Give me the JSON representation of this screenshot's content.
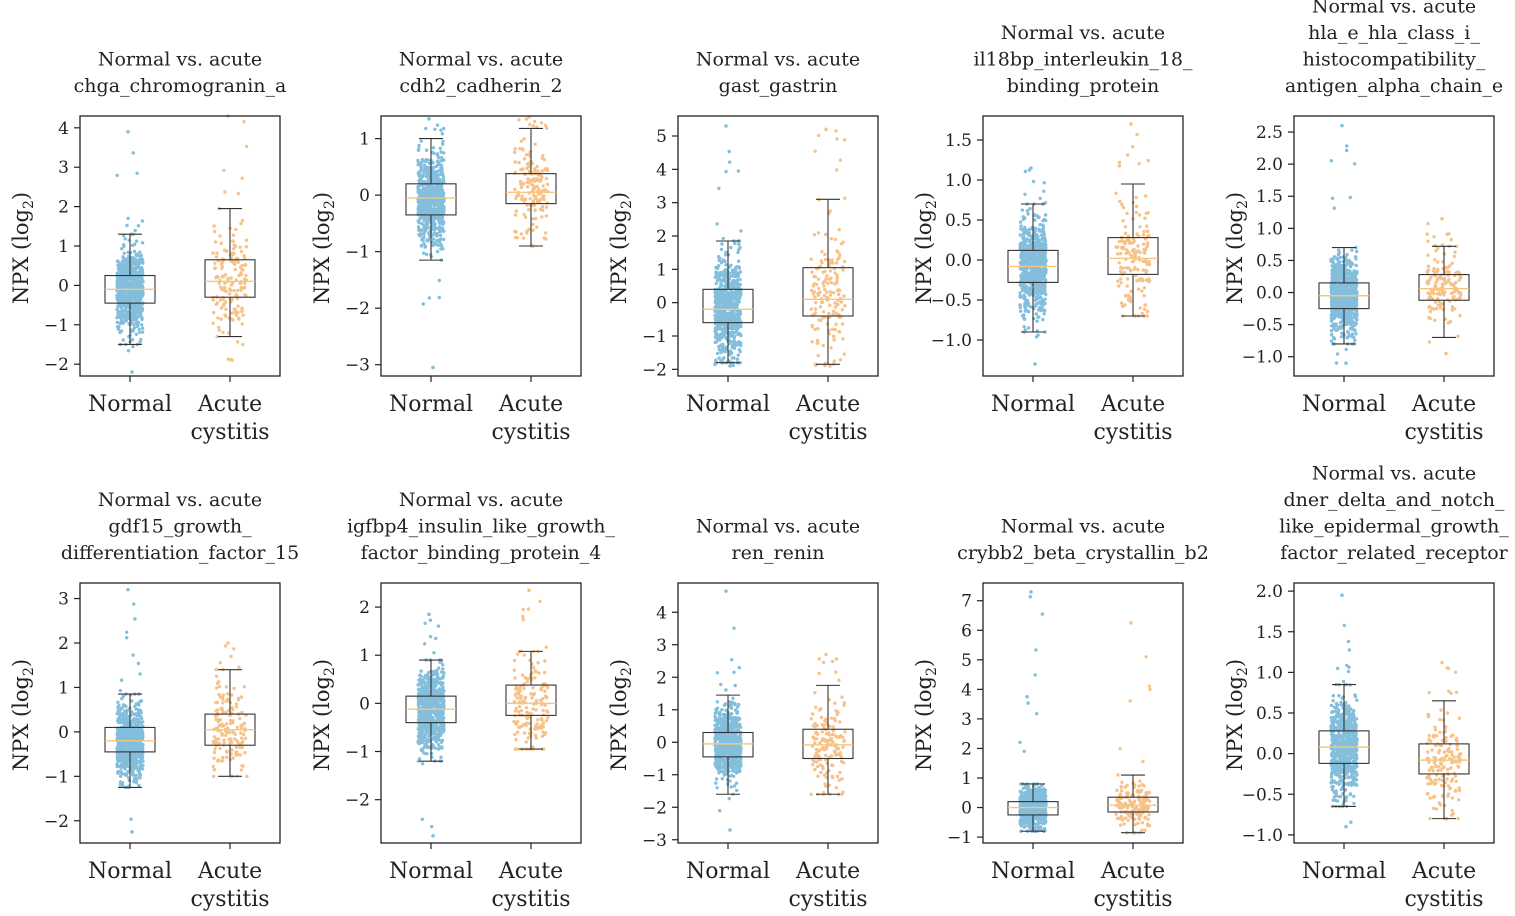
{
  "figure": {
    "description_panels": 10,
    "colors": {
      "normal": "#1f8ac0",
      "acute": "#f39a3c",
      "median": "#f5c77e",
      "box": "#333333"
    }
  },
  "chart_data": [
    {
      "type": "box",
      "title_lines": [
        "Normal vs. acute",
        "chga_chromogranin_a"
      ],
      "ylabel": "NPX (log",
      "ylabel_sub": "2",
      "ylabel_close": ")",
      "categories": [
        "Normal",
        "Acute cystitis"
      ],
      "category_lines": [
        [
          "Normal"
        ],
        [
          "Acute",
          "cystitis"
        ]
      ],
      "ylim": [
        -2.3,
        4.3
      ],
      "yticks": [
        -2,
        -1,
        0,
        1,
        2,
        3,
        4
      ],
      "ytick_labels": [
        "−2",
        "−1",
        "0",
        "1",
        "2",
        "3",
        "4"
      ],
      "series": [
        {
          "name": "Normal",
          "q1": -0.45,
          "median": -0.1,
          "q3": 0.25,
          "whisker_low": -1.5,
          "whisker_high": 1.3,
          "point_min": -2.2,
          "point_max": 3.9,
          "n": 700
        },
        {
          "name": "Acute cystitis",
          "q1": -0.3,
          "median": 0.1,
          "q3": 0.65,
          "whisker_low": -1.3,
          "whisker_high": 1.95,
          "point_min": -1.9,
          "point_max": 4.3,
          "n": 160
        }
      ]
    },
    {
      "type": "box",
      "title_lines": [
        "Normal vs. acute",
        "cdh2_cadherin_2"
      ],
      "ylabel": "NPX (log",
      "ylabel_sub": "2",
      "ylabel_close": ")",
      "categories": [
        "Normal",
        "Acute cystitis"
      ],
      "category_lines": [
        [
          "Normal"
        ],
        [
          "Acute",
          "cystitis"
        ]
      ],
      "ylim": [
        -3.2,
        1.4
      ],
      "yticks": [
        -3,
        -2,
        -1,
        0,
        1
      ],
      "ytick_labels": [
        "−3",
        "−2",
        "−1",
        "0",
        "1"
      ],
      "series": [
        {
          "name": "Normal",
          "q1": -0.35,
          "median": -0.05,
          "q3": 0.2,
          "whisker_low": -1.15,
          "whisker_high": 1.0,
          "point_min": -3.05,
          "point_max": 1.35,
          "n": 700
        },
        {
          "name": "Acute cystitis",
          "q1": -0.15,
          "median": 0.05,
          "q3": 0.38,
          "whisker_low": -0.9,
          "whisker_high": 1.18,
          "point_min": -0.9,
          "point_max": 1.38,
          "n": 160
        }
      ]
    },
    {
      "type": "box",
      "title_lines": [
        "Normal vs. acute",
        "gast_gastrin"
      ],
      "ylabel": "NPX (log",
      "ylabel_sub": "2",
      "ylabel_close": ")",
      "categories": [
        "Normal",
        "Acute cystitis"
      ],
      "category_lines": [
        [
          "Normal"
        ],
        [
          "Acute",
          "cystitis"
        ]
      ],
      "ylim": [
        -2.2,
        5.6
      ],
      "yticks": [
        -2,
        -1,
        0,
        1,
        2,
        3,
        4,
        5
      ],
      "ytick_labels": [
        "−2",
        "−1",
        "0",
        "1",
        "2",
        "3",
        "4",
        "5"
      ],
      "series": [
        {
          "name": "Normal",
          "q1": -0.6,
          "median": -0.2,
          "q3": 0.4,
          "whisker_low": -1.8,
          "whisker_high": 1.85,
          "point_min": -1.9,
          "point_max": 5.3,
          "n": 700
        },
        {
          "name": "Acute cystitis",
          "q1": -0.4,
          "median": 0.1,
          "q3": 1.05,
          "whisker_low": -1.85,
          "whisker_high": 3.1,
          "point_min": -1.9,
          "point_max": 5.2,
          "n": 160
        }
      ]
    },
    {
      "type": "box",
      "title_lines": [
        "Normal vs. acute",
        "il18bp_interleukin_18_",
        "binding_protein"
      ],
      "ylabel": "NPX (log",
      "ylabel_sub": "2",
      "ylabel_close": ")",
      "categories": [
        "Normal",
        "Acute cystitis"
      ],
      "category_lines": [
        [
          "Normal"
        ],
        [
          "Acute",
          "cystitis"
        ]
      ],
      "ylim": [
        -1.45,
        1.8
      ],
      "yticks": [
        -1.0,
        -0.5,
        0.0,
        0.5,
        1.0,
        1.5
      ],
      "ytick_labels": [
        "−1.0",
        "−0.5",
        "0.0",
        "0.5",
        "1.0",
        "1.5"
      ],
      "series": [
        {
          "name": "Normal",
          "q1": -0.28,
          "median": -0.08,
          "q3": 0.12,
          "whisker_low": -0.9,
          "whisker_high": 0.7,
          "point_min": -1.3,
          "point_max": 1.15,
          "n": 700
        },
        {
          "name": "Acute cystitis",
          "q1": -0.18,
          "median": 0.02,
          "q3": 0.28,
          "whisker_low": -0.7,
          "whisker_high": 0.95,
          "point_min": -0.7,
          "point_max": 1.7,
          "n": 160
        }
      ]
    },
    {
      "type": "box",
      "title_lines": [
        "Normal vs. acute",
        "hla_e_hla_class_i_",
        "histocompatibility_",
        "antigen_alpha_chain_e"
      ],
      "ylabel": "NPX (log",
      "ylabel_sub": "2",
      "ylabel_close": ")",
      "categories": [
        "Normal",
        "Acute cystitis"
      ],
      "category_lines": [
        [
          "Normal"
        ],
        [
          "Acute",
          "cystitis"
        ]
      ],
      "ylim": [
        -1.3,
        2.75
      ],
      "yticks": [
        -1.0,
        -0.5,
        0.0,
        0.5,
        1.0,
        1.5,
        2.0,
        2.5
      ],
      "ytick_labels": [
        "−1.0",
        "−0.5",
        "0.0",
        "0.5",
        "1.0",
        "1.5",
        "2.0",
        "2.5"
      ],
      "series": [
        {
          "name": "Normal",
          "q1": -0.25,
          "median": -0.05,
          "q3": 0.15,
          "whisker_low": -0.8,
          "whisker_high": 0.7,
          "point_min": -1.1,
          "point_max": 2.6,
          "n": 700
        },
        {
          "name": "Acute cystitis",
          "q1": -0.12,
          "median": 0.06,
          "q3": 0.28,
          "whisker_low": -0.7,
          "whisker_high": 0.72,
          "point_min": -0.95,
          "point_max": 1.15,
          "n": 160
        }
      ]
    },
    {
      "type": "box",
      "title_lines": [
        "Normal vs. acute",
        "gdf15_growth_",
        "differentiation_factor_15"
      ],
      "ylabel": "NPX (log",
      "ylabel_sub": "2",
      "ylabel_close": ")",
      "categories": [
        "Normal",
        "Acute cystitis"
      ],
      "category_lines": [
        [
          "Normal"
        ],
        [
          "Acute",
          "cystitis"
        ]
      ],
      "ylim": [
        -2.5,
        3.35
      ],
      "yticks": [
        -2,
        -1,
        0,
        1,
        2,
        3
      ],
      "ytick_labels": [
        "−2",
        "−1",
        "0",
        "1",
        "2",
        "3"
      ],
      "series": [
        {
          "name": "Normal",
          "q1": -0.45,
          "median": -0.2,
          "q3": 0.1,
          "whisker_low": -1.25,
          "whisker_high": 0.85,
          "point_min": -2.25,
          "point_max": 3.2,
          "n": 700
        },
        {
          "name": "Acute cystitis",
          "q1": -0.3,
          "median": 0.05,
          "q3": 0.4,
          "whisker_low": -1.0,
          "whisker_high": 1.4,
          "point_min": -1.0,
          "point_max": 2.0,
          "n": 160
        }
      ]
    },
    {
      "type": "box",
      "title_lines": [
        "Normal vs. acute",
        "igfbp4_insulin_like_growth_",
        "factor_binding_protein_4"
      ],
      "ylabel": "NPX (log",
      "ylabel_sub": "2",
      "ylabel_close": ")",
      "categories": [
        "Normal",
        "Acute cystitis"
      ],
      "category_lines": [
        [
          "Normal"
        ],
        [
          "Acute",
          "cystitis"
        ]
      ],
      "ylim": [
        -2.9,
        2.5
      ],
      "yticks": [
        -2,
        -1,
        0,
        1,
        2
      ],
      "ytick_labels": [
        "−2",
        "−1",
        "0",
        "1",
        "2"
      ],
      "series": [
        {
          "name": "Normal",
          "q1": -0.4,
          "median": -0.12,
          "q3": 0.15,
          "whisker_low": -1.2,
          "whisker_high": 0.9,
          "point_min": -2.75,
          "point_max": 1.85,
          "n": 700
        },
        {
          "name": "Acute cystitis",
          "q1": -0.25,
          "median": 0.0,
          "q3": 0.38,
          "whisker_low": -0.95,
          "whisker_high": 1.08,
          "point_min": -0.95,
          "point_max": 2.35,
          "n": 160
        }
      ]
    },
    {
      "type": "box",
      "title_lines": [
        "Normal vs. acute",
        "ren_renin"
      ],
      "ylabel": "NPX (log",
      "ylabel_sub": "2",
      "ylabel_close": ")",
      "categories": [
        "Normal",
        "Acute cystitis"
      ],
      "category_lines": [
        [
          "Normal"
        ],
        [
          "Acute",
          "cystitis"
        ]
      ],
      "ylim": [
        -3.1,
        4.9
      ],
      "yticks": [
        -3,
        -2,
        -1,
        0,
        1,
        2,
        3,
        4
      ],
      "ytick_labels": [
        "−3",
        "−2",
        "−1",
        "0",
        "1",
        "2",
        "3",
        "4"
      ],
      "series": [
        {
          "name": "Normal",
          "q1": -0.45,
          "median": -0.05,
          "q3": 0.3,
          "whisker_low": -1.6,
          "whisker_high": 1.45,
          "point_min": -2.7,
          "point_max": 4.65,
          "n": 700
        },
        {
          "name": "Acute cystitis",
          "q1": -0.5,
          "median": -0.08,
          "q3": 0.4,
          "whisker_low": -1.6,
          "whisker_high": 1.75,
          "point_min": -1.6,
          "point_max": 2.7,
          "n": 160
        }
      ]
    },
    {
      "type": "box",
      "title_lines": [
        "Normal vs. acute",
        "crybb2_beta_crystallin_b2"
      ],
      "ylabel": "NPX (log",
      "ylabel_sub": "2",
      "ylabel_close": ")",
      "categories": [
        "Normal",
        "Acute cystitis"
      ],
      "category_lines": [
        [
          "Normal"
        ],
        [
          "Acute",
          "cystitis"
        ]
      ],
      "ylim": [
        -1.2,
        7.6
      ],
      "yticks": [
        -1,
        0,
        1,
        2,
        3,
        4,
        5,
        6,
        7
      ],
      "ytick_labels": [
        "−1",
        "0",
        "1",
        "2",
        "3",
        "4",
        "5",
        "6",
        "7"
      ],
      "series": [
        {
          "name": "Normal",
          "q1": -0.25,
          "median": 0.0,
          "q3": 0.2,
          "whisker_low": -0.8,
          "whisker_high": 0.8,
          "point_min": -0.8,
          "point_max": 7.3,
          "n": 700
        },
        {
          "name": "Acute cystitis",
          "q1": -0.15,
          "median": 0.08,
          "q3": 0.35,
          "whisker_low": -0.85,
          "whisker_high": 1.1,
          "point_min": -0.85,
          "point_max": 6.25,
          "n": 160
        }
      ]
    },
    {
      "type": "box",
      "title_lines": [
        "Normal vs. acute",
        "dner_delta_and_notch_",
        "like_epidermal_growth_",
        "factor_related_receptor"
      ],
      "ylabel": "NPX (log",
      "ylabel_sub": "2",
      "ylabel_close": ")",
      "categories": [
        "Normal",
        "Acute cystitis"
      ],
      "category_lines": [
        [
          "Normal"
        ],
        [
          "Acute",
          "cystitis"
        ]
      ],
      "ylim": [
        -1.1,
        2.1
      ],
      "yticks": [
        -1.0,
        -0.5,
        0.0,
        0.5,
        1.0,
        1.5,
        2.0
      ],
      "ytick_labels": [
        "−1.0",
        "−0.5",
        "0.0",
        "0.5",
        "1.0",
        "1.5",
        "2.0"
      ],
      "series": [
        {
          "name": "Normal",
          "q1": -0.12,
          "median": 0.08,
          "q3": 0.28,
          "whisker_low": -0.65,
          "whisker_high": 0.85,
          "point_min": -0.9,
          "point_max": 1.95,
          "n": 700
        },
        {
          "name": "Acute cystitis",
          "q1": -0.25,
          "median": -0.08,
          "q3": 0.12,
          "whisker_low": -0.8,
          "whisker_high": 0.65,
          "point_min": -0.8,
          "point_max": 1.12,
          "n": 160
        }
      ]
    }
  ]
}
